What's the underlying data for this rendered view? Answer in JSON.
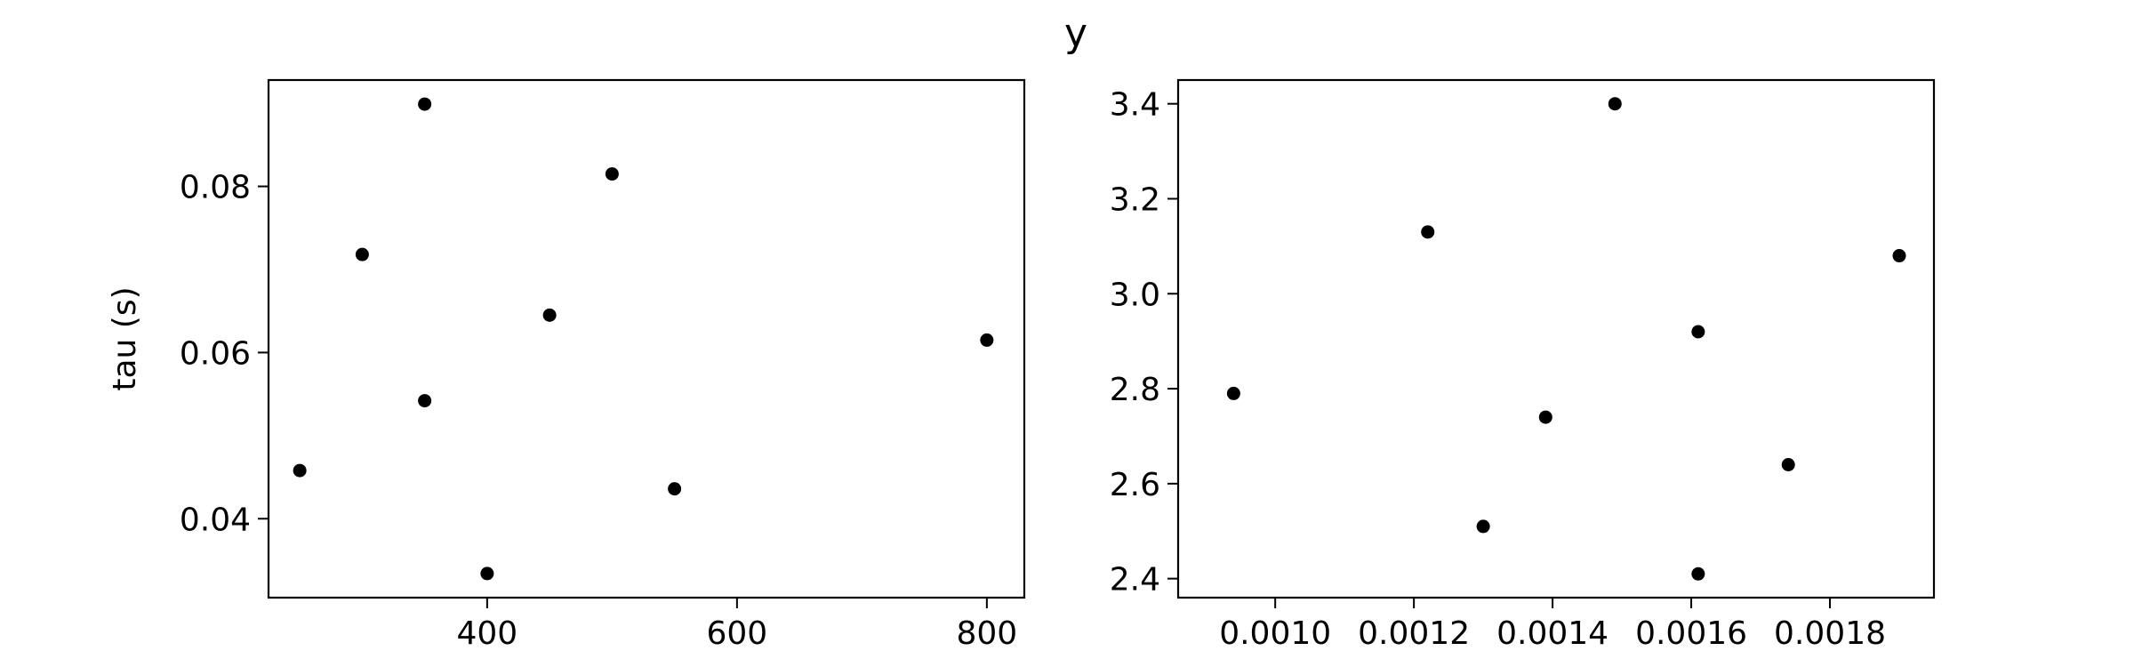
{
  "suptitle": "y",
  "chart_data": [
    {
      "type": "scatter",
      "title": "",
      "xlabel": "",
      "ylabel": "tau (s)",
      "xlim": [
        225,
        830
      ],
      "ylim": [
        0.0305,
        0.0928
      ],
      "xticks": [
        400,
        600,
        800
      ],
      "xtick_labels": [
        "400",
        "600",
        "800"
      ],
      "yticks": [
        0.04,
        0.06,
        0.08
      ],
      "ytick_labels": [
        "0.04",
        "0.06",
        "0.08"
      ],
      "grid": false,
      "points": [
        {
          "x": 350,
          "y": 0.0899
        },
        {
          "x": 500,
          "y": 0.0815
        },
        {
          "x": 300,
          "y": 0.0718
        },
        {
          "x": 450,
          "y": 0.0645
        },
        {
          "x": 800,
          "y": 0.0615
        },
        {
          "x": 350,
          "y": 0.0542
        },
        {
          "x": 250,
          "y": 0.0458
        },
        {
          "x": 550,
          "y": 0.0436
        },
        {
          "x": 400,
          "y": 0.0334
        }
      ]
    },
    {
      "type": "scatter",
      "title": "",
      "xlabel": "",
      "ylabel": "",
      "xlim": [
        0.00086,
        0.00195
      ],
      "ylim": [
        2.36,
        3.45
      ],
      "xticks": [
        0.001,
        0.0012,
        0.0014,
        0.0016,
        0.0018
      ],
      "xtick_labels": [
        "0.0010",
        "0.0012",
        "0.0014",
        "0.0016",
        "0.0018"
      ],
      "yticks": [
        2.4,
        2.6,
        2.8,
        3.0,
        3.2,
        3.4
      ],
      "ytick_labels": [
        "2.4",
        "2.6",
        "2.8",
        "3.0",
        "3.2",
        "3.4"
      ],
      "grid": false,
      "points": [
        {
          "x": 0.00094,
          "y": 2.79
        },
        {
          "x": 0.00122,
          "y": 3.13
        },
        {
          "x": 0.0013,
          "y": 2.51
        },
        {
          "x": 0.00139,
          "y": 2.74
        },
        {
          "x": 0.00149,
          "y": 3.4
        },
        {
          "x": 0.00161,
          "y": 2.92
        },
        {
          "x": 0.00161,
          "y": 2.41
        },
        {
          "x": 0.00174,
          "y": 2.64
        },
        {
          "x": 0.0019,
          "y": 3.08
        }
      ]
    }
  ]
}
